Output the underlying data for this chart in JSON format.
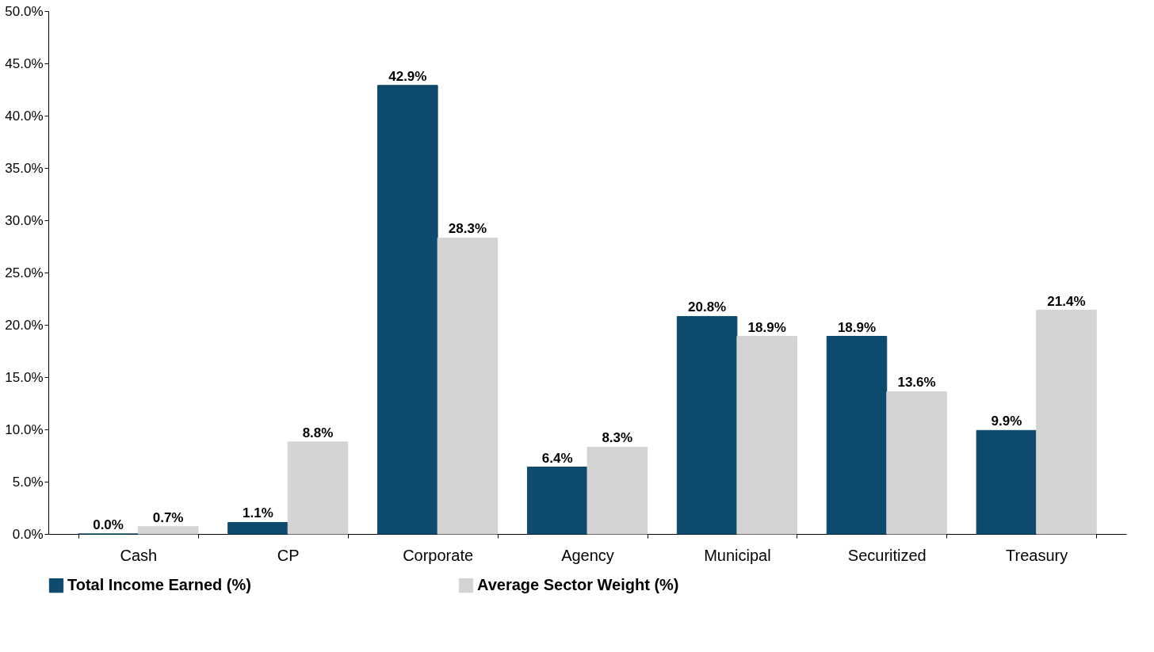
{
  "chart_data": {
    "type": "bar",
    "categories": [
      "Cash",
      "CP",
      "Corporate",
      "Agency",
      "Municipal",
      "Securitized",
      "Treasury"
    ],
    "series": [
      {
        "name": "Total Income Earned (%)",
        "color": "#0d4a6e",
        "values": [
          0.0,
          1.1,
          42.9,
          6.4,
          20.8,
          18.9,
          9.9
        ],
        "value_labels": [
          "0.0%",
          "1.1%",
          "42.9%",
          "6.4%",
          "20.8%",
          "18.9%",
          "9.9%"
        ]
      },
      {
        "name": "Average Sector Weight (%)",
        "color": "#d4d4d4",
        "values": [
          0.7,
          8.8,
          28.3,
          8.3,
          18.9,
          13.6,
          21.4
        ],
        "value_labels": [
          "0.7%",
          "8.8%",
          "28.3%",
          "8.3%",
          "18.9%",
          "13.6%",
          "21.4%"
        ]
      }
    ],
    "ylim": [
      0,
      50
    ],
    "yticks": [
      {
        "value": 0,
        "label": "0.0%"
      },
      {
        "value": 5,
        "label": "5.0%"
      },
      {
        "value": 10,
        "label": "10.0%"
      },
      {
        "value": 15,
        "label": "15.0%"
      },
      {
        "value": 20,
        "label": "20.0%"
      },
      {
        "value": 25,
        "label": "25.0%"
      },
      {
        "value": 30,
        "label": "30.0%"
      },
      {
        "value": 35,
        "label": "35.0%"
      },
      {
        "value": 40,
        "label": "40.0%"
      },
      {
        "value": 45,
        "label": "45.0%"
      },
      {
        "value": 50,
        "label": "50.0%"
      }
    ],
    "grid": false,
    "legend": "bottom"
  }
}
